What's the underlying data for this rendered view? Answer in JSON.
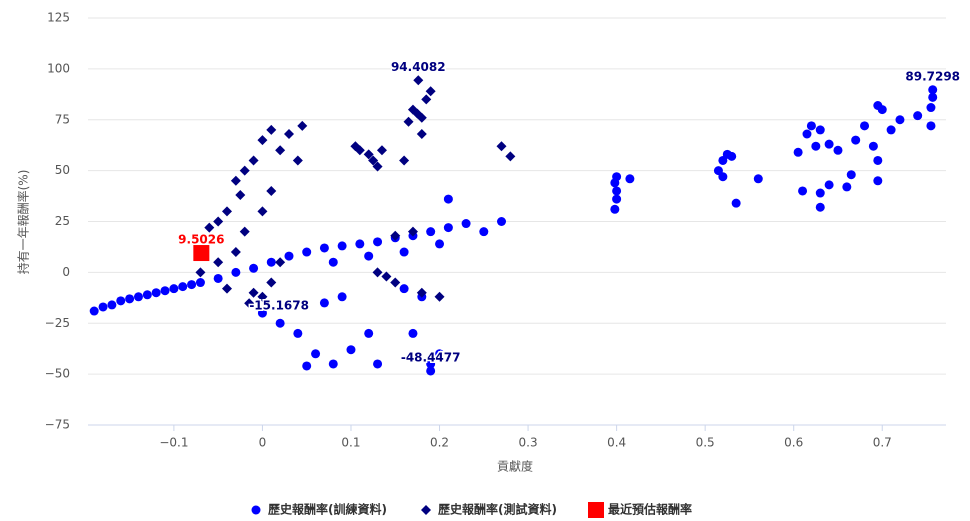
{
  "chart_data": {
    "type": "scatter",
    "x_label": "貢獻度",
    "y_label": "持有一年報酬率(%)",
    "xlim": [
      -0.197,
      0.772
    ],
    "ylim": [
      -75,
      125
    ],
    "xticks": [
      {
        "value": -0.1,
        "label": "−0.1"
      },
      0,
      0.1,
      0.2,
      0.3,
      0.4,
      0.5,
      0.6,
      0.7
    ],
    "yticks": [
      {
        "value": -75,
        "label": "−75"
      },
      {
        "value": -50,
        "label": "−50"
      },
      {
        "value": -25,
        "label": "−25"
      },
      0,
      25,
      50,
      75,
      100,
      125
    ],
    "grid": true,
    "legend": "bottom",
    "series": [
      {
        "name": "歷史報酬率(訓練資料)",
        "color": "#0000ff",
        "marker": "circle",
        "x": [
          -0.19,
          -0.18,
          -0.17,
          -0.16,
          -0.15,
          -0.14,
          -0.13,
          -0.12,
          -0.11,
          -0.1,
          -0.09,
          -0.08,
          -0.07,
          -0.05,
          -0.03,
          -0.01,
          0.01,
          0.03,
          0.05,
          0.07,
          0.09,
          0.11,
          0.13,
          0.15,
          0.17,
          0.19,
          0.21,
          0.23,
          0.25,
          0.27,
          0.21,
          0.08,
          0.12,
          0.16,
          0.2,
          0.0,
          0.02,
          0.04,
          0.06,
          0.08,
          0.05,
          0.1,
          0.12,
          0.13,
          0.07,
          0.09,
          0.17,
          0.19,
          0.19,
          0.2,
          0.18,
          0.16,
          0.398,
          0.4,
          0.4,
          0.398,
          0.4,
          0.415,
          0.515,
          0.52,
          0.525,
          0.53,
          0.535,
          0.56,
          0.52,
          0.605,
          0.615,
          0.62,
          0.625,
          0.63,
          0.63,
          0.63,
          0.64,
          0.64,
          0.65,
          0.66,
          0.665,
          0.67,
          0.68,
          0.69,
          0.695,
          0.695,
          0.695,
          0.7,
          0.71,
          0.72,
          0.74,
          0.755,
          0.755,
          0.757,
          0.757,
          0.61
        ],
        "values": [
          -19,
          -17,
          -16,
          -14,
          -13,
          -12,
          -11,
          -10,
          -9,
          -8,
          -7,
          -6,
          -5,
          -3,
          0,
          2,
          5,
          8,
          10,
          12,
          13,
          14,
          15,
          17,
          18,
          20,
          22,
          24,
          20,
          25,
          36,
          5,
          8,
          10,
          14,
          -20,
          -25,
          -30,
          -40,
          -45,
          -46,
          -38,
          -30,
          -45,
          -15,
          -12,
          -30,
          -45,
          -48.4477,
          -40,
          -12,
          -8,
          31,
          36,
          40,
          44,
          47,
          46,
          50,
          55,
          58,
          57,
          34,
          46,
          47,
          59,
          68,
          72,
          62,
          70,
          39,
          32,
          63,
          43,
          60,
          42,
          48,
          65,
          72,
          62,
          55,
          45,
          82,
          80,
          70,
          75,
          77,
          72,
          81,
          86,
          89.7298,
          40
        ]
      },
      {
        "name": "歷史報酬率(測試資料)",
        "color": "#000080",
        "marker": "diamond",
        "x": [
          -0.07,
          -0.06,
          -0.05,
          -0.04,
          -0.03,
          -0.03,
          -0.02,
          -0.02,
          -0.01,
          -0.01,
          0,
          0,
          0.01,
          0.01,
          0.02,
          0.03,
          0.04,
          0.045,
          0.0,
          -0.015,
          0.01,
          0.02,
          -0.04,
          -0.05,
          -0.025,
          0.105,
          0.11,
          0.12,
          0.125,
          0.13,
          0.135,
          0.165,
          0.17,
          0.175,
          0.176,
          0.18,
          0.185,
          0.19,
          0.16,
          0.18,
          0.27,
          0.28,
          0.13,
          0.14,
          0.15,
          0.17,
          0.15,
          0.2,
          0.18
        ],
        "values": [
          0,
          22,
          25,
          30,
          45,
          10,
          50,
          20,
          55,
          -10,
          65,
          30,
          70,
          40,
          60,
          68,
          55,
          72,
          -12,
          -15.1678,
          -5,
          5,
          -8,
          5,
          38,
          62,
          60,
          58,
          55,
          52,
          60,
          74,
          80,
          78,
          94.4082,
          76,
          85,
          89,
          55,
          68,
          62,
          57,
          0,
          -2,
          18,
          20,
          -5,
          -12,
          -10
        ]
      },
      {
        "name": "最近預估報酬率",
        "color": "#ff0000",
        "marker": "square",
        "x": [
          -0.069
        ],
        "values": [
          9.5026
        ]
      }
    ],
    "annotations": [
      {
        "text": "94.4082",
        "x": 0.176,
        "y": 94.4082,
        "color": "#000080"
      },
      {
        "text": "89.7298",
        "x": 0.757,
        "y": 89.7298,
        "color": "#000080"
      },
      {
        "text": "9.5026",
        "x": -0.069,
        "y": 9.5026,
        "color": "#ff0000"
      },
      {
        "text": "-15.1678",
        "x": -0.015,
        "y": -15.1678,
        "color": "#000080"
      },
      {
        "text": "-48.4477",
        "x": 0.19,
        "y": -48.4477,
        "color": "#000080"
      }
    ]
  }
}
